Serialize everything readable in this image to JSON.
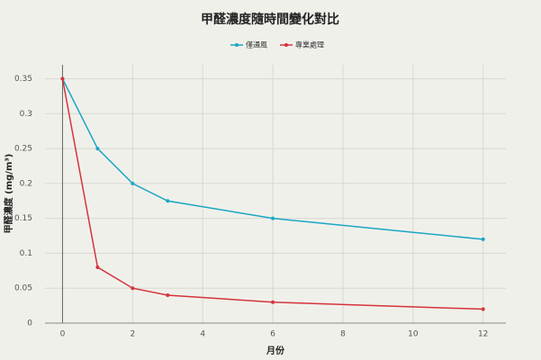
{
  "chart_data": {
    "type": "line",
    "title": "甲醛濃度隨時間變化對比",
    "x_label": "月份",
    "y_label": "甲醛濃度 (mg/m³)",
    "x": [
      0,
      1,
      2,
      3,
      6,
      12
    ],
    "series": [
      {
        "name": "僅通風",
        "color": "#1aa7c4",
        "values": [
          0.35,
          0.25,
          0.2,
          0.175,
          0.15,
          0.12
        ]
      },
      {
        "name": "專業處理",
        "color": "#d5343a",
        "values": [
          0.35,
          0.08,
          0.05,
          0.04,
          0.03,
          0.02
        ]
      }
    ],
    "xlim": [
      -0.5,
      12.65
    ],
    "ylim": [
      0,
      0.37
    ],
    "xticks": [
      0,
      2,
      4,
      6,
      8,
      10,
      12
    ],
    "yticks": [
      0,
      0.05,
      0.1,
      0.15,
      0.2,
      0.25,
      0.3,
      0.35
    ],
    "grid": true,
    "legend": "top"
  }
}
